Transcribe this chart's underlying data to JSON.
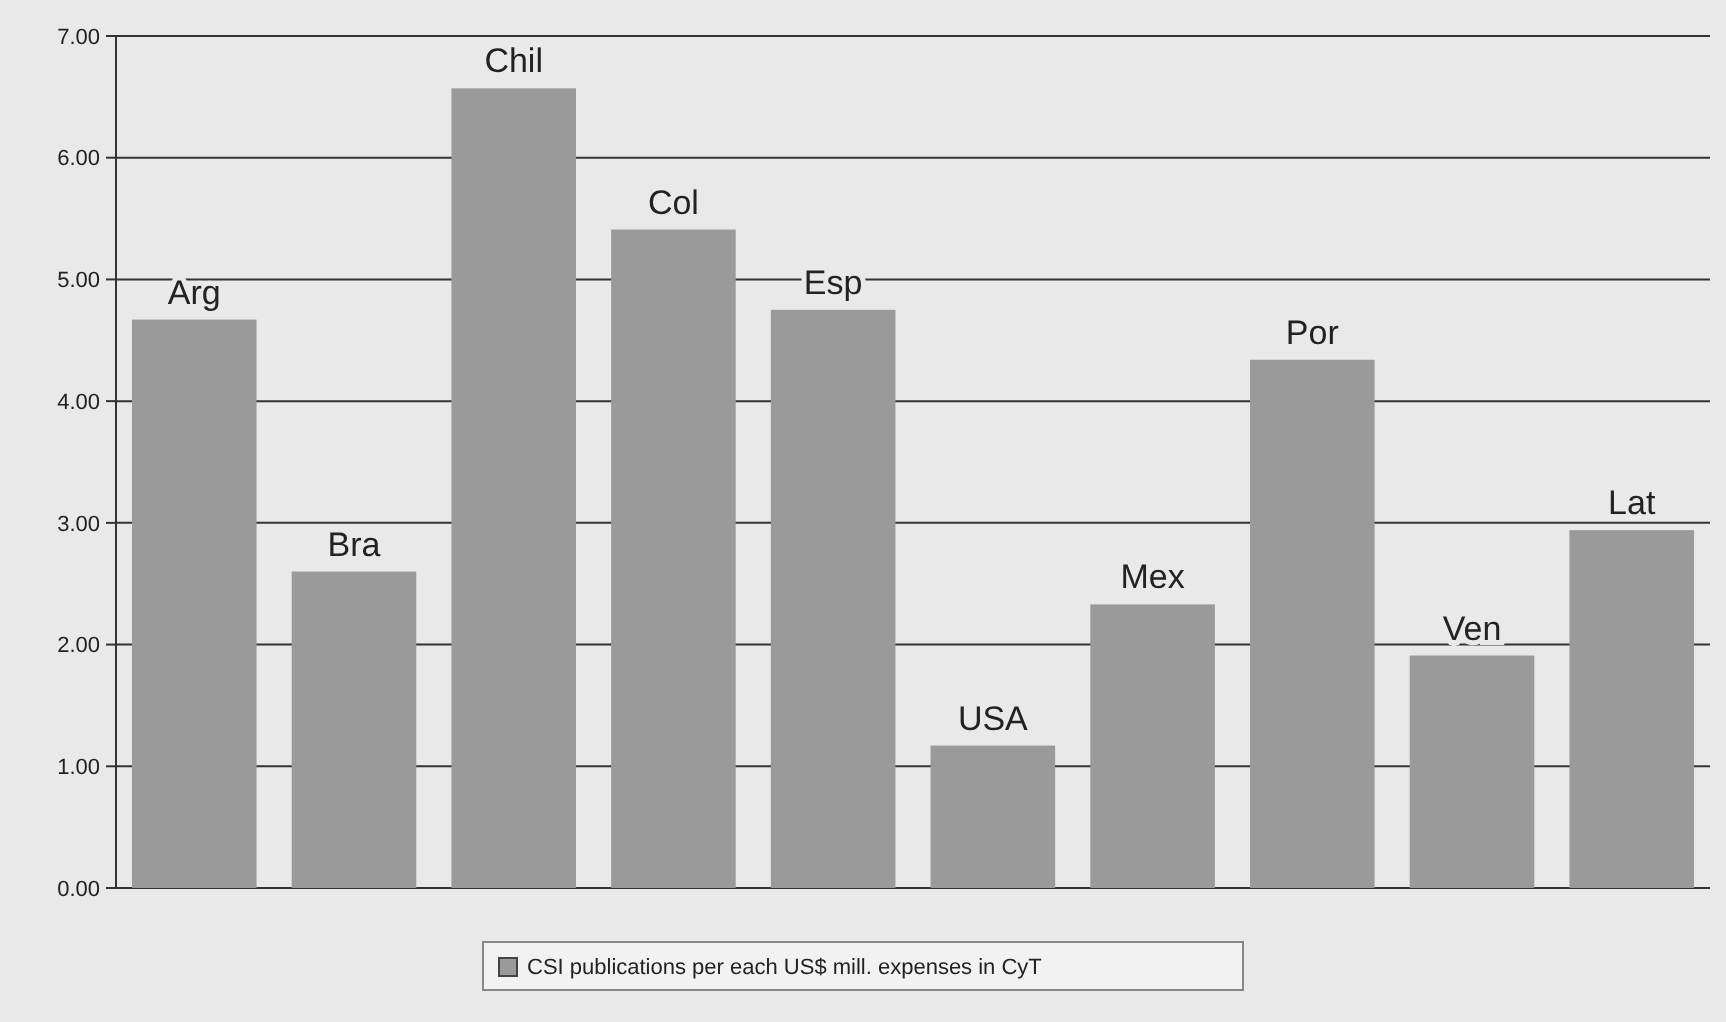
{
  "chart_data": {
    "type": "bar",
    "categories": [
      "Arg",
      "Bra",
      "Chil",
      "Col",
      "Esp",
      "USA",
      "Mex",
      "Por",
      "Ven",
      "Lat"
    ],
    "series": [
      {
        "name": "CSI publications per each US$ mill. expenses in CyT",
        "color": "#9a9a9a",
        "values": [
          4.67,
          2.6,
          6.57,
          5.41,
          4.75,
          1.17,
          2.33,
          4.34,
          1.91,
          2.94
        ]
      }
    ],
    "ylim": [
      0,
      7
    ],
    "yticks": [
      {
        "value": 0,
        "label": "0.00"
      },
      {
        "value": 1,
        "label": "1.00"
      },
      {
        "value": 2,
        "label": "2.00"
      },
      {
        "value": 3,
        "label": "3.00"
      },
      {
        "value": 4,
        "label": "4.00"
      },
      {
        "value": 5,
        "label": "5.00"
      },
      {
        "value": 6,
        "label": "6.00"
      },
      {
        "value": 7,
        "label": "7.00"
      }
    ],
    "grid": "y",
    "legend": "bottom"
  }
}
